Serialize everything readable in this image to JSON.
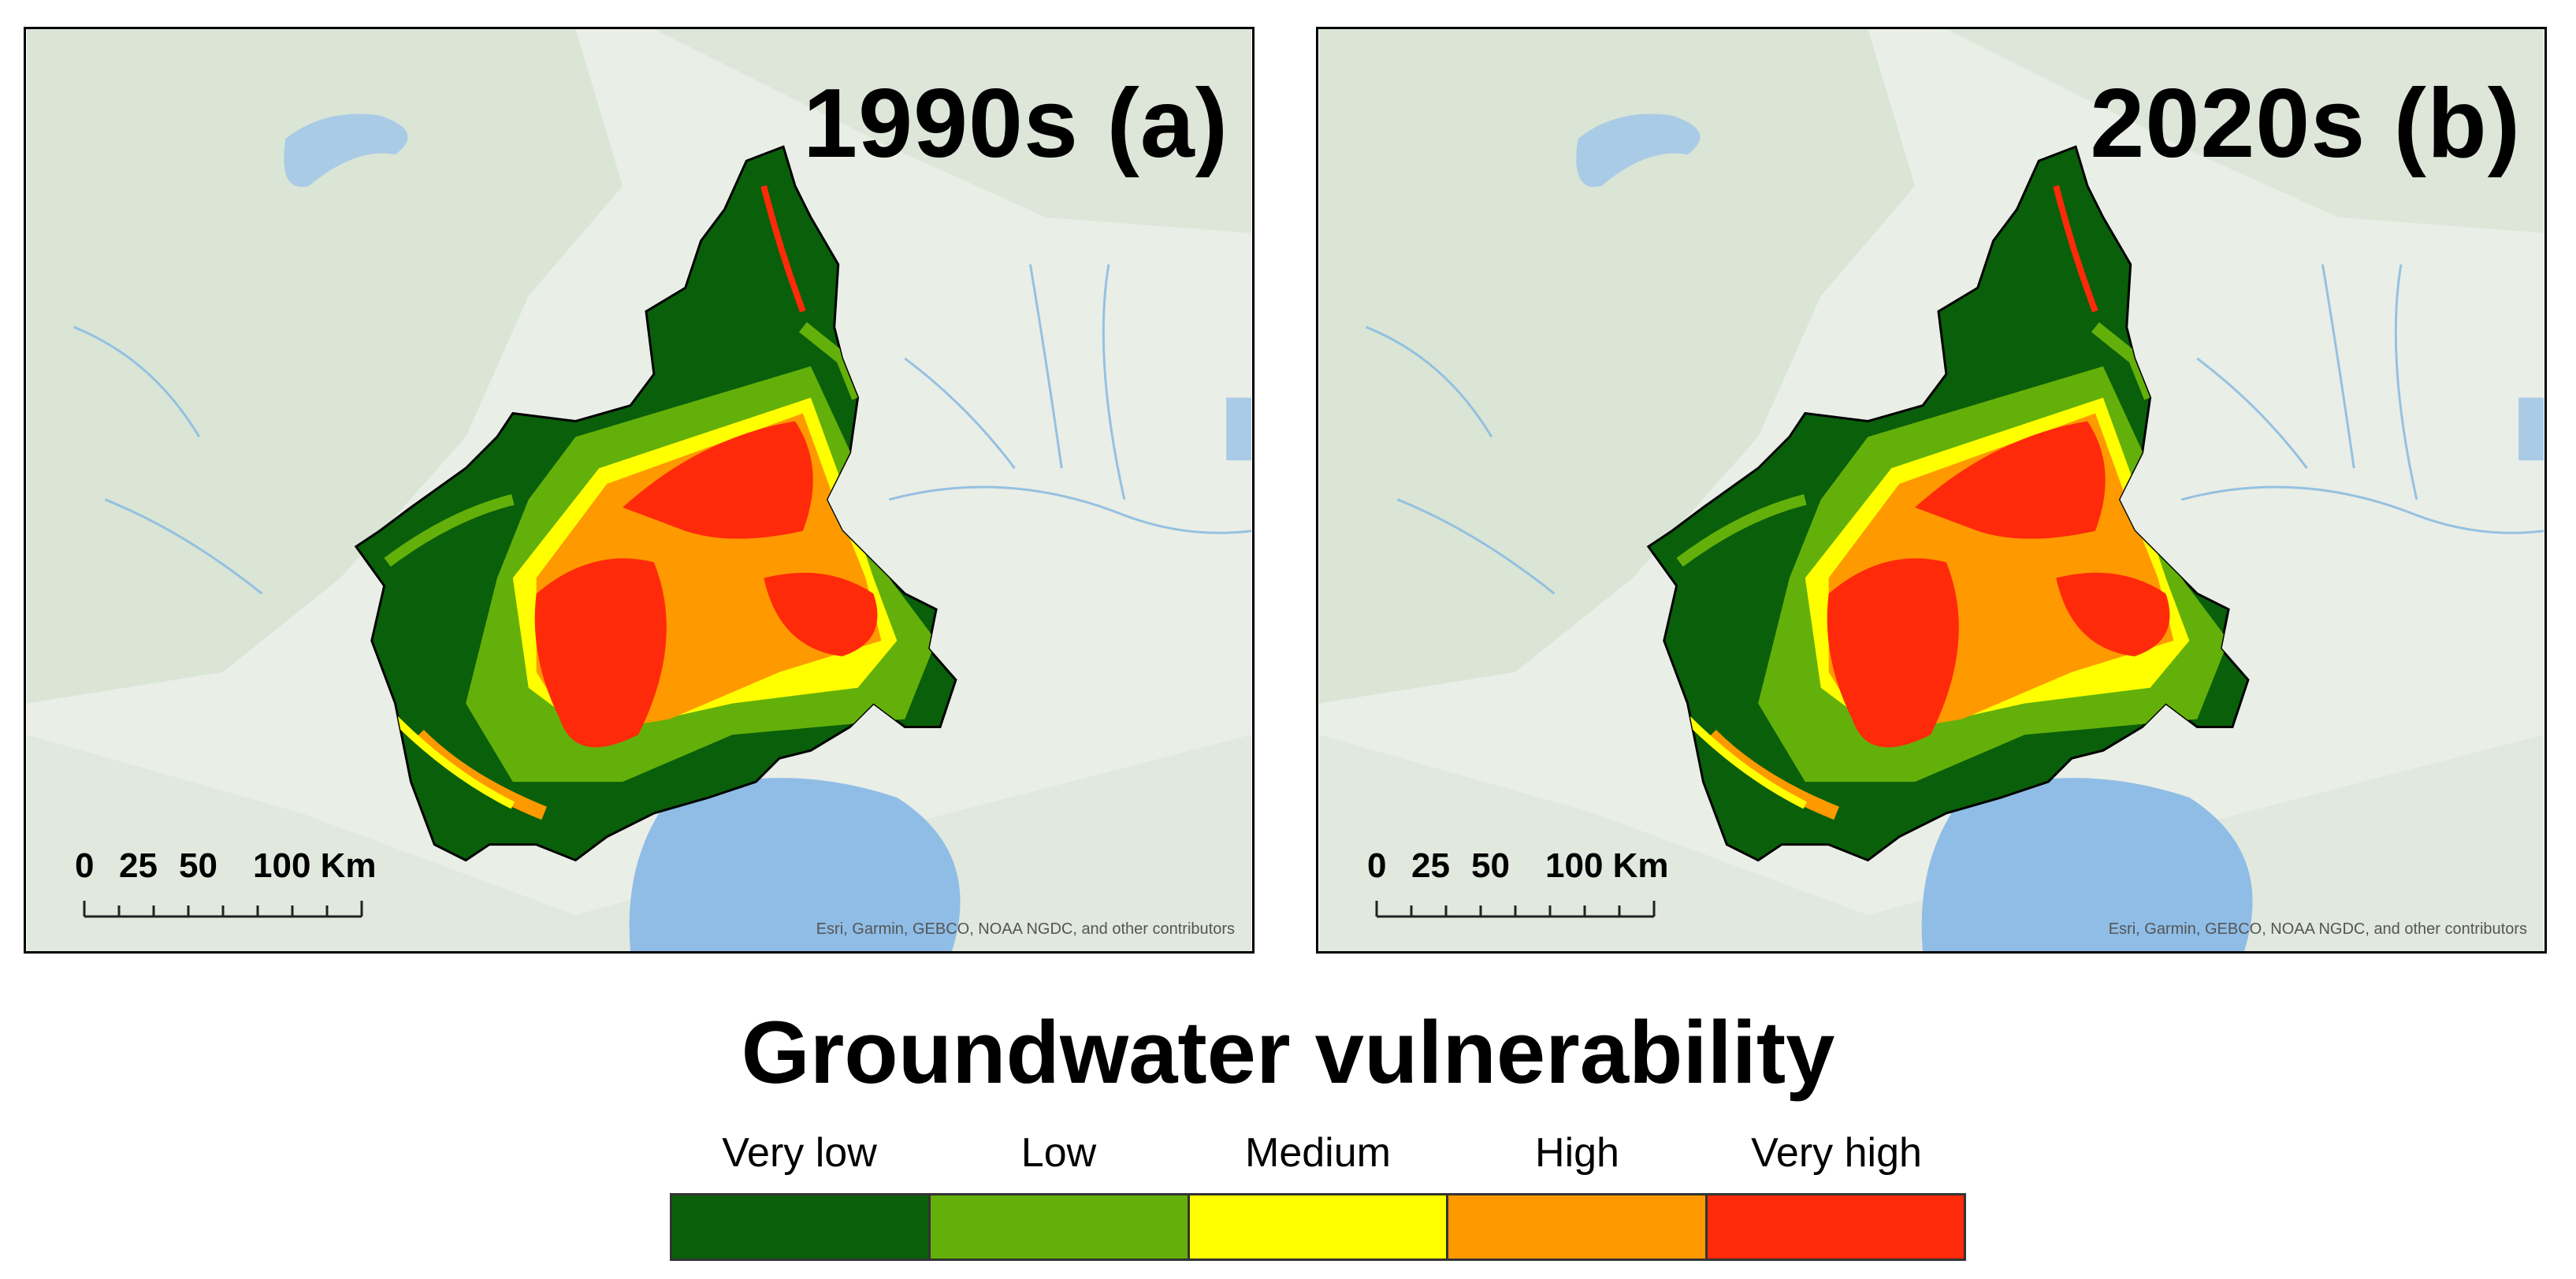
{
  "maps": [
    {
      "id": "a",
      "label": "1990s (a)"
    },
    {
      "id": "b",
      "label": "2020s (b)"
    }
  ],
  "scalebar": {
    "ticks": [
      "0",
      "25",
      "50"
    ],
    "end_label": "100 Km"
  },
  "attribution": "Esri, Garmin, GEBCO, NOAA NGDC, and other contributors",
  "legend": {
    "title": "Groundwater vulnerability",
    "classes": [
      {
        "label": "Very low",
        "color": "#0a5f0a"
      },
      {
        "label": "Low",
        "color": "#64b00a"
      },
      {
        "label": "Medium",
        "color": "#ffff00"
      },
      {
        "label": "High",
        "color": "#ff9900"
      },
      {
        "label": "Very high",
        "color": "#ff2a0a"
      }
    ]
  },
  "basemap_colors": {
    "land": "#e9eee7",
    "mountains": "#d6e2d2",
    "water": "#a9cbe6",
    "sea": "#8fbde6",
    "rivers": "#8cbde0"
  }
}
